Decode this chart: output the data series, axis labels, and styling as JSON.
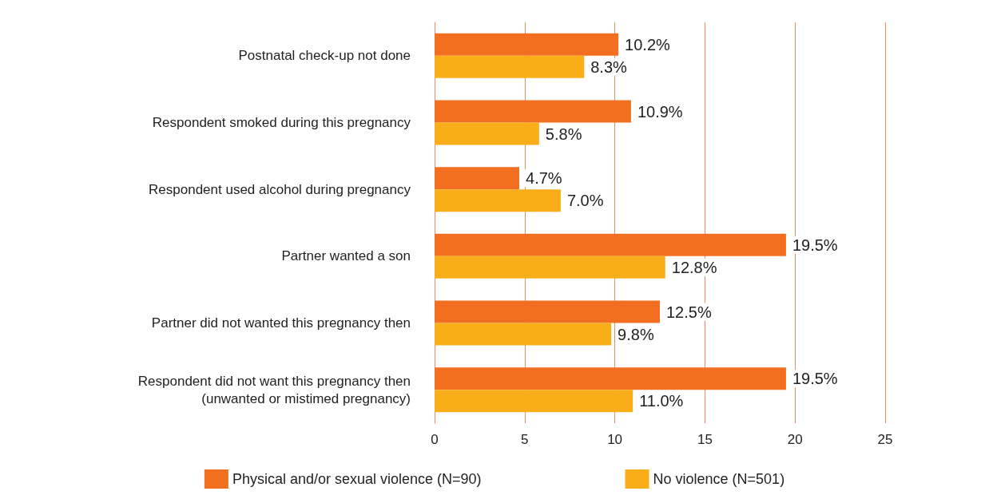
{
  "chart_data": {
    "type": "bar",
    "orientation": "horizontal",
    "categories": [
      "Postnatal check-up not done",
      "Respondent smoked during this pregnancy",
      "Respondent used alcohol during pregnancy",
      "Partner wanted a son",
      "Partner did not wanted this pregnancy then",
      "Respondent did not want this pregnancy then\n(unwanted or mistimed pregnancy)"
    ],
    "series": [
      {
        "name": "Physical and/or sexual violence (N=90)",
        "color": "#f26f21",
        "values": [
          10.2,
          10.9,
          4.7,
          19.5,
          12.5,
          19.5
        ],
        "value_labels": [
          "10.2%",
          "10.9%",
          "4.7%",
          "19.5%",
          "12.5%",
          "19.5%"
        ]
      },
      {
        "name": "No violence (N=501)",
        "color": "#f9ae19",
        "values": [
          8.3,
          5.8,
          7.0,
          12.8,
          9.8,
          11.0
        ],
        "value_labels": [
          "8.3%",
          "5.8%",
          "7.0%",
          "12.8%",
          "9.8%",
          "11.0%"
        ]
      }
    ],
    "xlim": [
      0,
      25
    ],
    "xticks": [
      0,
      5,
      10,
      15,
      20,
      25
    ],
    "grid": "x",
    "legend": "bottom"
  }
}
